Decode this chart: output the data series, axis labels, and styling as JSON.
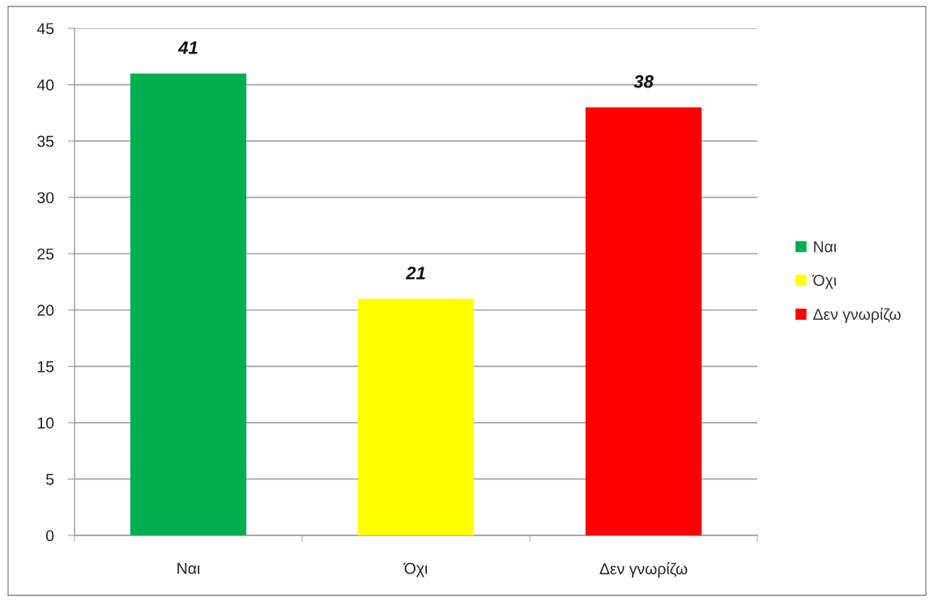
{
  "chart_data": {
    "type": "bar",
    "categories": [
      "Ναι",
      "Όχι",
      "Δεν γνωρίζω"
    ],
    "series": [
      {
        "name": "Ναι",
        "color": "#00b050",
        "values": [
          41,
          null,
          null
        ]
      },
      {
        "name": "Όχι",
        "color": "#ffff00",
        "values": [
          null,
          21,
          null
        ]
      },
      {
        "name": "Δεν γνωρίζω",
        "color": "#ff0000",
        "values": [
          null,
          null,
          38
        ]
      }
    ],
    "stacked": true,
    "ylim": [
      0,
      45
    ],
    "yticks": [
      0,
      5,
      10,
      15,
      20,
      25,
      30,
      35,
      40,
      45
    ],
    "grid": "y",
    "legend": "right",
    "data_labels": true
  }
}
